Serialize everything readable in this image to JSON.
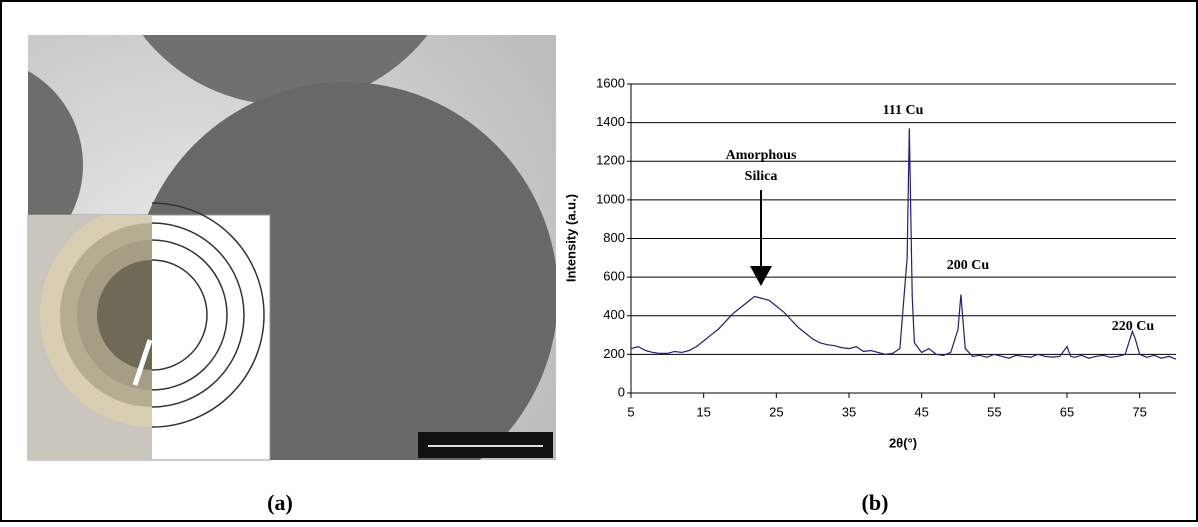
{
  "chart_data": {
    "type": "line",
    "y_label": "Intensity (a.u.)",
    "x_label": "2θ(°)",
    "annotations": [
      "Amorphous",
      "Silica",
      "111 Cu",
      "200 Cu",
      "220 Cu"
    ],
    "xlim": [
      5,
      80
    ],
    "ylim": [
      0,
      1600
    ],
    "xticks": [
      5,
      15,
      25,
      35,
      45,
      55,
      65,
      75
    ],
    "yticks": [
      0,
      200,
      400,
      600,
      800,
      1000,
      1200,
      1400,
      1600
    ],
    "grid": true,
    "color": "#1c1c8c",
    "x": [
      5,
      6,
      7,
      8,
      9,
      10,
      11,
      12,
      13,
      14,
      15,
      16,
      17,
      18,
      19,
      20,
      21,
      22,
      23,
      24,
      25,
      26,
      27,
      28,
      29,
      30,
      31,
      32,
      33,
      34,
      35,
      36,
      37,
      38,
      39,
      40,
      41,
      42,
      43,
      43.3,
      43.7,
      44,
      45,
      46,
      47,
      48,
      49,
      50,
      50.4,
      50.8,
      51,
      52,
      53,
      54,
      55,
      56,
      57,
      58,
      59,
      60,
      61,
      62,
      63,
      64,
      65,
      65.5,
      66,
      67,
      68,
      69,
      70,
      71,
      72,
      73,
      74,
      74.4,
      75,
      76,
      77,
      78,
      79,
      80
    ],
    "values": [
      230,
      240,
      220,
      210,
      205,
      205,
      215,
      210,
      220,
      240,
      270,
      300,
      330,
      370,
      410,
      440,
      470,
      500,
      490,
      480,
      450,
      420,
      380,
      340,
      310,
      280,
      260,
      250,
      245,
      235,
      230,
      240,
      215,
      220,
      210,
      200,
      205,
      230,
      700,
      1370,
      500,
      260,
      210,
      230,
      200,
      195,
      210,
      330,
      510,
      320,
      230,
      190,
      195,
      185,
      200,
      190,
      180,
      195,
      190,
      185,
      200,
      190,
      185,
      190,
      240,
      190,
      185,
      195,
      180,
      190,
      195,
      185,
      190,
      200,
      320,
      280,
      200,
      185,
      195,
      180,
      190,
      175
    ]
  },
  "panel_labels": [
    "(a)",
    "(b)"
  ]
}
